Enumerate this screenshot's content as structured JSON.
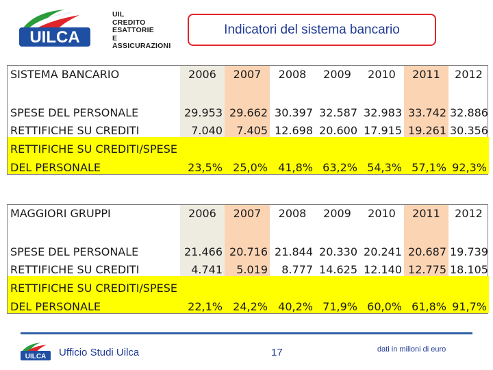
{
  "header": {
    "logo_word": "UILCA",
    "logo_lines": [
      "UIL",
      "CREDITO",
      "ESATTORIE",
      "E ASSICURAZIONI"
    ],
    "title": "Indicatori del sistema bancario"
  },
  "colors": {
    "highlight_2007": "#fbd4b4",
    "highlight_2011": "#fbd4b4",
    "highlight_other": "#eeece1",
    "ratio_row": "#ffff00",
    "title_border": "#e0242a",
    "title_text": "#1f3a93"
  },
  "tables": [
    {
      "title": "SISTEMA BANCARIO",
      "years": [
        "2006",
        "2007",
        "2008",
        "2009",
        "2010",
        "2011",
        "2012"
      ],
      "rows": [
        {
          "label": "SPESE DEL PERSONALE",
          "values": [
            "29.953",
            "29.662",
            "30.397",
            "32.587",
            "32.983",
            "33.742",
            "32.886"
          ]
        },
        {
          "label": "RETTIFICHE SU CREDITI",
          "values": [
            "7.040",
            "7.405",
            "12.698",
            "20.600",
            "17.915",
            "19.261",
            "30.356"
          ]
        }
      ],
      "ratio": {
        "label_line1": "RETTIFICHE SU CREDITI/SPESE",
        "label_line2": "DEL PERSONALE",
        "values": [
          "23,5%",
          "25,0%",
          "41,8%",
          "63,2%",
          "54,3%",
          "57,1%",
          "92,3%"
        ]
      }
    },
    {
      "title": "MAGGIORI GRUPPI",
      "years": [
        "2006",
        "2007",
        "2008",
        "2009",
        "2010",
        "2011",
        "2012"
      ],
      "rows": [
        {
          "label": "SPESE DEL PERSONALE",
          "values": [
            "21.466",
            "20.716",
            "21.844",
            "20.330",
            "20.241",
            "20.687",
            "19.739"
          ]
        },
        {
          "label": "RETTIFICHE SU CREDITI",
          "values": [
            "4.741",
            "5.019",
            "8.777",
            "14.625",
            "12.140",
            "12.775",
            "18.105"
          ]
        }
      ],
      "ratio": {
        "label_line1": "RETTIFICHE SU CREDITI/SPESE",
        "label_line2": "DEL PERSONALE",
        "values": [
          "22,1%",
          "24,2%",
          "40,2%",
          "71,9%",
          "60,0%",
          "61,8%",
          "91,7%"
        ]
      }
    }
  ],
  "footer": {
    "office": "Ufficio Studi Uilca",
    "page_number": "17",
    "note": "dati in milioni di euro"
  }
}
